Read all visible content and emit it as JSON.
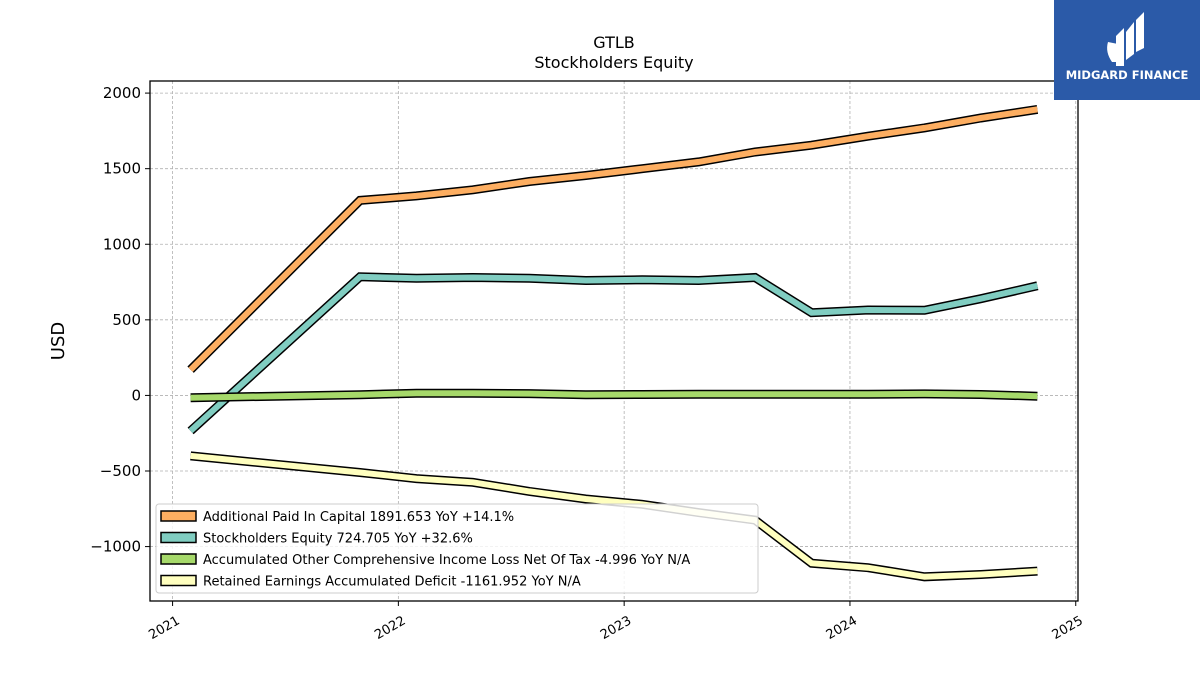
{
  "chart_data": {
    "type": "line",
    "title": "GTLB",
    "subtitle": "Stockholders  Equity",
    "xlabel": "",
    "ylabel": "USD",
    "xlim": [
      2020.9,
      2025.01
    ],
    "ylim": [
      -1360,
      2080
    ],
    "x_ticks": [
      {
        "value": 2021,
        "label": "2021"
      },
      {
        "value": 2022,
        "label": "2022"
      },
      {
        "value": 2023,
        "label": "2023"
      },
      {
        "value": 2024,
        "label": "2024"
      },
      {
        "value": 2025,
        "label": "2025"
      }
    ],
    "y_ticks": [
      {
        "value": 2000,
        "label": "2000"
      },
      {
        "value": 1500,
        "label": "1500"
      },
      {
        "value": 1000,
        "label": "1000"
      },
      {
        "value": 500,
        "label": "500"
      },
      {
        "value": 0,
        "label": "0"
      },
      {
        "value": -500,
        "label": "−500"
      },
      {
        "value": -1000,
        "label": "−1000"
      }
    ],
    "grid": true,
    "legend_position": "lower-left",
    "series": [
      {
        "name": "Additional Paid In Capital  1891.653 YoY +14.1%",
        "color": "#fdae61",
        "x": [
          2021.08,
          2021.83,
          2022.08,
          2022.33,
          2022.58,
          2022.83,
          2023.08,
          2023.33,
          2023.58,
          2023.83,
          2024.08,
          2024.33,
          2024.58,
          2024.83
        ],
        "y": [
          170,
          1290,
          1320,
          1360,
          1415,
          1455,
          1500,
          1545,
          1610,
          1655,
          1715,
          1770,
          1835,
          1892
        ]
      },
      {
        "name": "Stockholders Equity  724.705 YoY +32.6%",
        "color": "#80cdc1",
        "x": [
          2021.08,
          2021.83,
          2022.08,
          2022.33,
          2022.58,
          2022.83,
          2023.08,
          2023.33,
          2023.58,
          2023.83,
          2024.08,
          2024.33,
          2024.58,
          2024.83
        ],
        "y": [
          -235,
          785,
          775,
          780,
          775,
          760,
          765,
          760,
          780,
          547,
          565,
          563,
          640,
          725
        ]
      },
      {
        "name": "Accumulated Other Comprehensive Income Loss Net Of Tax  -4.996 YoY N/A",
        "color": "#a6d96a",
        "x": [
          2021.08,
          2021.83,
          2022.08,
          2022.33,
          2022.58,
          2022.83,
          2023.08,
          2023.33,
          2023.58,
          2023.83,
          2024.08,
          2024.33,
          2024.58,
          2024.83
        ],
        "y": [
          -15,
          5,
          15,
          15,
          12,
          4,
          6,
          8,
          8,
          8,
          8,
          10,
          6,
          -5
        ]
      },
      {
        "name": "Retained Earnings Accumulated Deficit  -1161.952 YoY N/A",
        "color": "#ffffbf",
        "x": [
          2021.08,
          2021.83,
          2022.08,
          2022.33,
          2022.58,
          2022.83,
          2023.08,
          2023.33,
          2023.58,
          2023.83,
          2024.08,
          2024.33,
          2024.58,
          2024.83
        ],
        "y": [
          -400,
          -510,
          -550,
          -575,
          -635,
          -685,
          -720,
          -775,
          -825,
          -1110,
          -1140,
          -1200,
          -1185,
          -1162
        ]
      }
    ]
  },
  "logo": {
    "text": "MIDGARD FINANCE"
  }
}
